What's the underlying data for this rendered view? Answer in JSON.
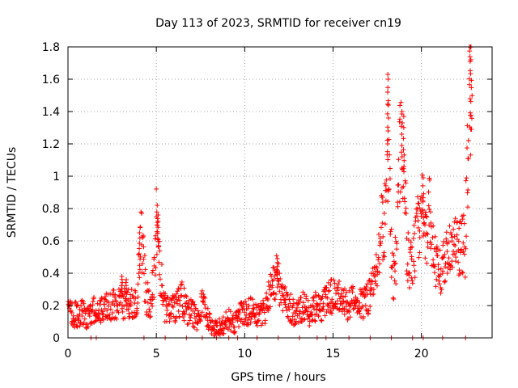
{
  "chart_data": {
    "type": "scatter",
    "title": "Day 113 of 2023, SRMTID for receiver cn19",
    "xlabel": "GPS time / hours",
    "ylabel": "SRMTID / TECUs",
    "xlim": [
      0,
      24
    ],
    "ylim": [
      0,
      1.8
    ],
    "x_ticks": [
      0,
      5,
      10,
      15,
      20
    ],
    "x_tick_labels": [
      "0",
      "5",
      "10",
      "15",
      "20"
    ],
    "y_ticks": [
      0,
      0.2,
      0.4,
      0.6,
      0.8,
      1.0,
      1.2,
      1.4,
      1.6,
      1.8
    ],
    "y_tick_labels": [
      "0",
      "0.2",
      "0.4",
      "0.6",
      "0.8",
      "1",
      "1.2",
      "1.4",
      "1.6",
      "1.8"
    ],
    "grid": true,
    "marker": "+",
    "marker_color": "#ff0000",
    "series": [
      {
        "name": "SRMTID",
        "profile": [
          [
            0.0,
            0.17
          ],
          [
            0.3,
            0.14
          ],
          [
            0.6,
            0.15
          ],
          [
            0.9,
            0.15
          ],
          [
            1.2,
            0.12
          ],
          [
            1.5,
            0.18
          ],
          [
            1.8,
            0.17
          ],
          [
            2.1,
            0.2
          ],
          [
            2.4,
            0.19
          ],
          [
            2.7,
            0.21
          ],
          [
            3.0,
            0.22
          ],
          [
            3.3,
            0.2
          ],
          [
            3.6,
            0.23
          ],
          [
            3.9,
            0.18
          ],
          [
            4.1,
            0.6
          ],
          [
            4.2,
            0.58
          ],
          [
            4.4,
            0.25
          ],
          [
            4.7,
            0.22
          ],
          [
            4.9,
            0.4
          ],
          [
            5.0,
            0.72
          ],
          [
            5.2,
            0.42
          ],
          [
            5.5,
            0.18
          ],
          [
            5.8,
            0.19
          ],
          [
            6.1,
            0.18
          ],
          [
            6.4,
            0.25
          ],
          [
            6.7,
            0.17
          ],
          [
            7.0,
            0.16
          ],
          [
            7.3,
            0.12
          ],
          [
            7.6,
            0.2
          ],
          [
            7.9,
            0.13
          ],
          [
            8.2,
            0.07
          ],
          [
            8.5,
            0.06
          ],
          [
            8.8,
            0.07
          ],
          [
            9.1,
            0.12
          ],
          [
            9.4,
            0.08
          ],
          [
            9.7,
            0.14
          ],
          [
            10.0,
            0.16
          ],
          [
            10.3,
            0.17
          ],
          [
            10.6,
            0.15
          ],
          [
            10.9,
            0.14
          ],
          [
            11.2,
            0.18
          ],
          [
            11.5,
            0.3
          ],
          [
            11.7,
            0.38
          ],
          [
            11.9,
            0.35
          ],
          [
            12.2,
            0.25
          ],
          [
            12.5,
            0.2
          ],
          [
            12.8,
            0.16
          ],
          [
            13.1,
            0.18
          ],
          [
            13.4,
            0.2
          ],
          [
            13.7,
            0.14
          ],
          [
            14.0,
            0.2
          ],
          [
            14.3,
            0.18
          ],
          [
            14.6,
            0.22
          ],
          [
            14.9,
            0.26
          ],
          [
            15.2,
            0.24
          ],
          [
            15.5,
            0.25
          ],
          [
            15.8,
            0.2
          ],
          [
            16.1,
            0.22
          ],
          [
            16.4,
            0.2
          ],
          [
            16.7,
            0.22
          ],
          [
            17.0,
            0.25
          ],
          [
            17.2,
            0.3
          ],
          [
            17.5,
            0.4
          ],
          [
            17.7,
            0.65
          ],
          [
            17.9,
            0.7
          ],
          [
            18.0,
            0.75
          ],
          [
            18.1,
            1.2
          ],
          [
            18.2,
            0.9
          ],
          [
            18.4,
            0.35
          ],
          [
            18.6,
            0.55
          ],
          [
            18.8,
            1.2
          ],
          [
            19.0,
            1.1
          ],
          [
            19.2,
            0.5
          ],
          [
            19.5,
            0.45
          ],
          [
            19.7,
            0.62
          ],
          [
            20.0,
            0.8
          ],
          [
            20.2,
            0.6
          ],
          [
            20.5,
            0.78
          ],
          [
            20.7,
            0.5
          ],
          [
            21.0,
            0.38
          ],
          [
            21.2,
            0.45
          ],
          [
            21.5,
            0.5
          ],
          [
            21.8,
            0.55
          ],
          [
            22.1,
            0.55
          ],
          [
            22.3,
            0.6
          ],
          [
            22.5,
            0.55
          ],
          [
            22.6,
            1.1
          ],
          [
            22.7,
            1.55
          ],
          [
            22.8,
            1.5
          ],
          [
            22.9,
            1.2
          ]
        ],
        "spikes": [
          {
            "x": 3.05,
            "y": 0.38
          },
          {
            "x": 3.3,
            "y": 0.36
          },
          {
            "x": 4.05,
            "y": 0.65
          },
          {
            "x": 5.05,
            "y": 0.82
          },
          {
            "x": 5.1,
            "y": 0.76
          },
          {
            "x": 11.85,
            "y": 0.49
          },
          {
            "x": 18.1,
            "y": 1.63
          },
          {
            "x": 18.12,
            "y": 1.6
          },
          {
            "x": 18.9,
            "y": 1.4
          },
          {
            "x": 19.0,
            "y": 1.37
          },
          {
            "x": 20.1,
            "y": 0.99
          },
          {
            "x": 22.75,
            "y": 1.74
          },
          {
            "x": 22.8,
            "y": 1.72
          }
        ],
        "zero_markers": [
          1.3,
          1.6,
          4.3,
          5.5,
          6.7,
          7.6,
          8.4,
          9.1,
          9.6,
          10.7,
          11.9,
          13.1,
          14.1,
          14.6,
          15.9,
          17.1,
          18.3,
          19.5,
          20.1,
          21.2,
          22.5
        ]
      }
    ]
  }
}
